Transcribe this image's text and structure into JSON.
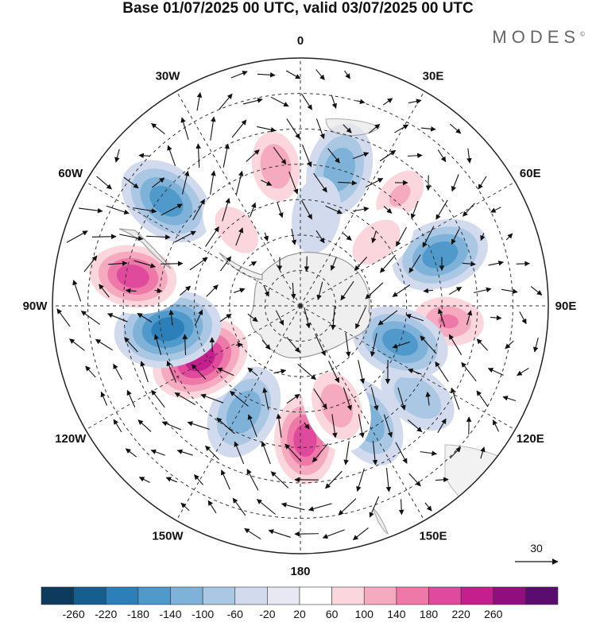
{
  "title": "Base 01/07/2025 00 UTC, valid 03/07/2025 00 UTC",
  "brand": "MODES",
  "brand_mark": "©",
  "longitude_labels": [
    {
      "text": "0",
      "lon": 0
    },
    {
      "text": "30E",
      "lon": 30
    },
    {
      "text": "60E",
      "lon": 60
    },
    {
      "text": "90E",
      "lon": 90
    },
    {
      "text": "120E",
      "lon": 120
    },
    {
      "text": "150E",
      "lon": 150
    },
    {
      "text": "180",
      "lon": 180
    },
    {
      "text": "150W",
      "lon": -150
    },
    {
      "text": "120W",
      "lon": -120
    },
    {
      "text": "90W",
      "lon": -90
    },
    {
      "text": "60W",
      "lon": -60
    },
    {
      "text": "30W",
      "lon": -30
    }
  ],
  "vector_reference": {
    "label": "30"
  },
  "colorbar": {
    "ticks": [
      "-260",
      "-220",
      "-180",
      "-140",
      "-100",
      "-60",
      "-20",
      "20",
      "60",
      "100",
      "140",
      "180",
      "220",
      "260"
    ],
    "colors": [
      "#0d3b5e",
      "#155e8f",
      "#2c7fb8",
      "#4f9acb",
      "#7fb2d9",
      "#aac7e4",
      "#d2daee",
      "#e8e8f4",
      "#ffffff",
      "#fbd6dc",
      "#f6aac0",
      "#ee78a8",
      "#e04a9c",
      "#c41f8c",
      "#8e0f7d",
      "#5a0d6e"
    ]
  },
  "anomaly_centers": [
    {
      "lat": -50,
      "lon": -10,
      "value": 130
    },
    {
      "lat": -50,
      "lon": 16,
      "value": -130
    },
    {
      "lat": -48,
      "lon": 42,
      "value": 100
    },
    {
      "lat": -48,
      "lon": 70,
      "value": -150
    },
    {
      "lat": -48,
      "lon": 96,
      "value": 140
    },
    {
      "lat": -48,
      "lon": 128,
      "value": -70
    },
    {
      "lat": -52,
      "lon": 150,
      "value": -120
    },
    {
      "lat": -52,
      "lon": 178,
      "value": 190
    },
    {
      "lat": -56,
      "lon": -152,
      "value": -140
    },
    {
      "lat": -58,
      "lon": -118,
      "value": 250
    },
    {
      "lat": -52,
      "lon": -100,
      "value": -200
    },
    {
      "lat": -42,
      "lon": -80,
      "value": 190
    },
    {
      "lat": -42,
      "lon": -52,
      "value": -160
    },
    {
      "lat": -62,
      "lon": -40,
      "value": 70
    },
    {
      "lat": -62,
      "lon": 50,
      "value": 80
    },
    {
      "lat": -60,
      "lon": 110,
      "value": -150
    },
    {
      "lat": -60,
      "lon": 160,
      "value": 130
    },
    {
      "lat": -64,
      "lon": 10,
      "value": -40
    }
  ]
}
